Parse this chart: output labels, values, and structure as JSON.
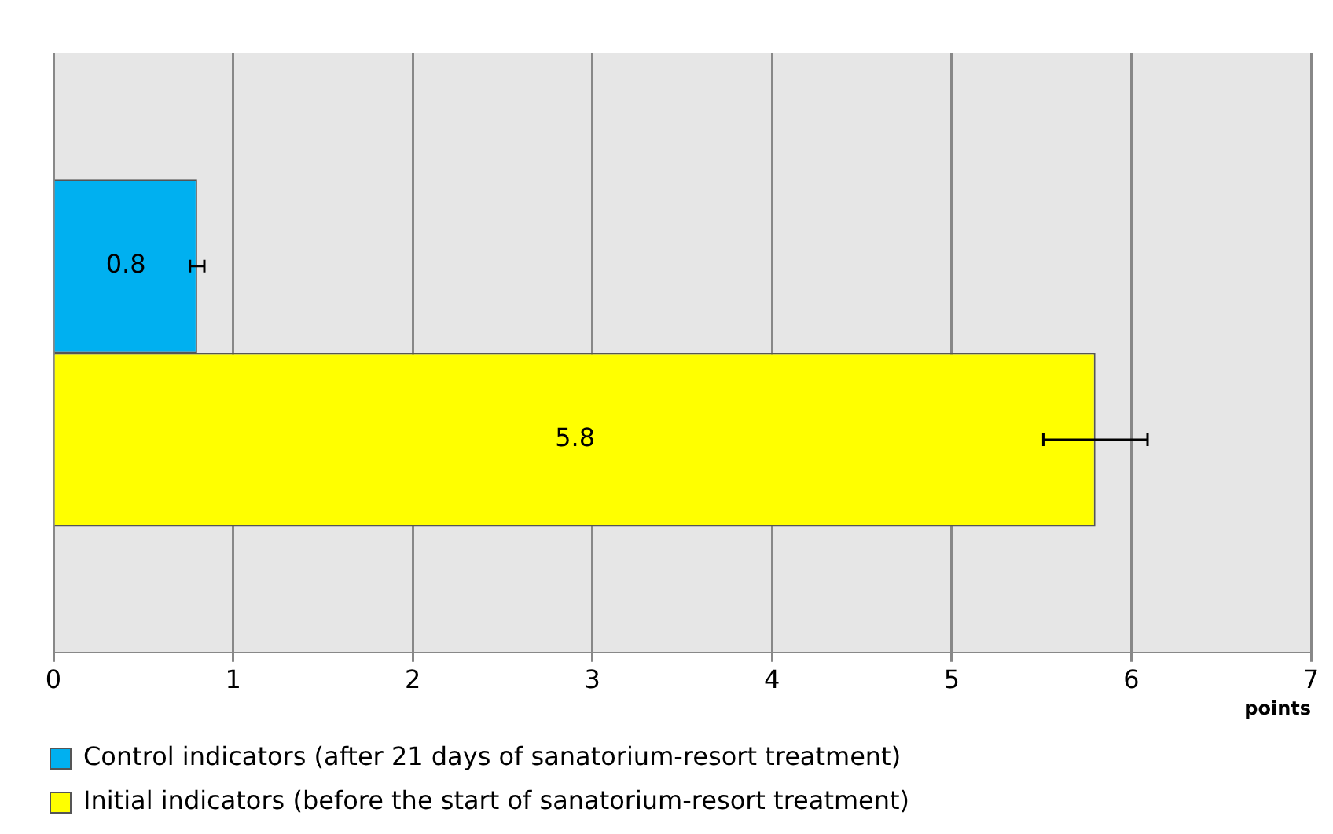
{
  "chart_data": {
    "type": "bar",
    "orientation": "horizontal",
    "categories": [
      null
    ],
    "series": [
      {
        "name": "Control indicators (after 21 days of sanatorium-resort treatment)",
        "color": "#00b0f0",
        "values": [
          0.8
        ],
        "errors": [
          0.04
        ]
      },
      {
        "name": "Initial indicators (before the start of sanatorium-resort treatment)",
        "color": "#ffff00",
        "values": [
          5.8
        ],
        "errors": [
          0.29
        ]
      }
    ],
    "xlabel": "points",
    "xlim": [
      0,
      7
    ],
    "xticks": [
      0,
      1,
      2,
      3,
      4,
      5,
      6,
      7
    ],
    "grid": "x",
    "legend": "bottom",
    "data_labels": true
  }
}
